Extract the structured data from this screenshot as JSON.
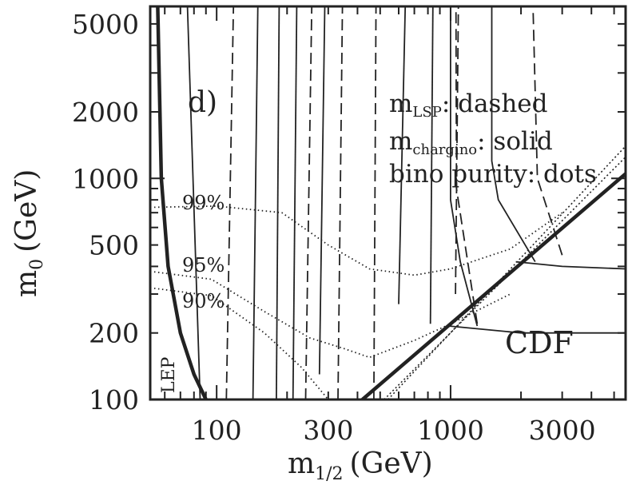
{
  "chart_data": {
    "type": "line",
    "panel_label": "d)",
    "xlabel": "m",
    "xlabel_sub": "1/2",
    "xlabel_unit": "(GeV)",
    "ylabel": "m",
    "ylabel_sub": "0",
    "ylabel_unit": "(GeV)",
    "x_scale": "log",
    "y_scale": "log",
    "xlim": [
      52,
      5600
    ],
    "ylim": [
      100,
      6000
    ],
    "x_ticklabels": [
      {
        "value": 100,
        "label": "100"
      },
      {
        "value": 300,
        "label": "300"
      },
      {
        "value": 1000,
        "label": "1000"
      },
      {
        "value": 3000,
        "label": "3000"
      }
    ],
    "y_ticklabels": [
      {
        "value": 100,
        "label": "100"
      },
      {
        "value": 200,
        "label": "200"
      },
      {
        "value": 500,
        "label": "500"
      },
      {
        "value": 1000,
        "label": "1000"
      },
      {
        "value": 2000,
        "label": "2000"
      },
      {
        "value": 5000,
        "label": "5000"
      }
    ],
    "legend_text": [
      {
        "main": "m",
        "sub": "LSP",
        "rest": ": dashed"
      },
      {
        "main": "m",
        "sub": "chargino",
        "rest": ": solid"
      },
      {
        "main": "",
        "sub": "",
        "rest": "bino purity: dots"
      }
    ],
    "region_labels": {
      "lep": "LEP",
      "cdf": "CDF"
    },
    "purity_labels": [
      "99%",
      "95%",
      "90%"
    ],
    "series": [
      {
        "style": "thick",
        "points": [
          [
            56,
            6000
          ],
          [
            58,
            1000
          ],
          [
            62,
            400
          ],
          [
            70,
            200
          ],
          [
            80,
            130
          ],
          [
            90,
            100
          ]
        ]
      },
      {
        "style": "thick",
        "points": [
          [
            420,
            100
          ],
          [
            5600,
            1050
          ]
        ]
      },
      {
        "style": "dotted",
        "points": [
          [
            520,
            100
          ],
          [
            5600,
            1250
          ]
        ]
      },
      {
        "style": "dotted",
        "points": [
          [
            540,
            100
          ],
          [
            5600,
            1400
          ]
        ]
      },
      {
        "style": "dashed",
        "points": [
          [
            110,
            100
          ],
          [
            118,
            6000
          ]
        ]
      },
      {
        "style": "dashed",
        "points": [
          [
            240,
            100
          ],
          [
            255,
            6000
          ]
        ]
      },
      {
        "style": "dashed",
        "points": [
          [
            330,
            100
          ],
          [
            345,
            6000
          ]
        ]
      },
      {
        "style": "dashed",
        "points": [
          [
            470,
            100
          ],
          [
            480,
            6000
          ]
        ]
      },
      {
        "style": "dashed",
        "points": [
          [
            1050,
            300
          ],
          [
            1080,
            6000
          ]
        ]
      },
      {
        "style": "dashed",
        "points": [
          [
            1300,
            220
          ],
          [
            1060,
            900
          ],
          [
            1055,
            6000
          ]
        ]
      },
      {
        "style": "dashed",
        "points": [
          [
            3000,
            450
          ],
          [
            2350,
            1000
          ],
          [
            2250,
            6000
          ]
        ]
      },
      {
        "style": "solid",
        "points": [
          [
            75,
            6000
          ],
          [
            85,
            100
          ]
        ]
      },
      {
        "style": "solid",
        "points": [
          [
            143,
            100
          ],
          [
            150,
            6000
          ]
        ]
      },
      {
        "style": "solid",
        "points": [
          [
            180,
            100
          ],
          [
            185,
            6000
          ]
        ]
      },
      {
        "style": "solid",
        "points": [
          [
            212,
            100
          ],
          [
            220,
            6000
          ]
        ]
      },
      {
        "style": "solid",
        "points": [
          [
            275,
            130
          ],
          [
            290,
            6000
          ]
        ]
      },
      {
        "style": "solid",
        "points": [
          [
            600,
            270
          ],
          [
            640,
            6000
          ]
        ]
      },
      {
        "style": "solid",
        "points": [
          [
            820,
            220
          ],
          [
            840,
            6000
          ]
        ]
      },
      {
        "style": "solid",
        "points": [
          [
            1300,
            215
          ],
          [
            1100,
            420
          ],
          [
            1000,
            800
          ],
          [
            1000,
            6000
          ]
        ]
      },
      {
        "style": "solid",
        "points": [
          [
            2300,
            420
          ],
          [
            1600,
            800
          ],
          [
            1500,
            1200
          ],
          [
            1500,
            6000
          ]
        ]
      },
      {
        "style": "solid",
        "points": [
          [
            1900,
            420
          ],
          [
            3000,
            400
          ],
          [
            5600,
            390
          ]
        ]
      },
      {
        "style": "solid",
        "points": [
          [
            980,
            215
          ],
          [
            2000,
            200
          ],
          [
            5600,
            200
          ]
        ]
      },
      {
        "style": "dots",
        "label": "99%",
        "points": [
          [
            52,
            740
          ],
          [
            100,
            750
          ],
          [
            190,
            700
          ],
          [
            300,
            500
          ],
          [
            450,
            390
          ],
          [
            700,
            365
          ],
          [
            1000,
            390
          ],
          [
            1800,
            480
          ],
          [
            3000,
            700
          ]
        ]
      },
      {
        "style": "dots",
        "label": "95%",
        "points": [
          [
            52,
            380
          ],
          [
            95,
            350
          ],
          [
            160,
            250
          ],
          [
            250,
            190
          ],
          [
            350,
            170
          ],
          [
            450,
            155
          ],
          [
            700,
            185
          ],
          [
            1000,
            220
          ],
          [
            1800,
            300
          ]
        ]
      },
      {
        "style": "dots",
        "label": "90%",
        "points": [
          [
            52,
            320
          ],
          [
            95,
            295
          ],
          [
            160,
            200
          ],
          [
            230,
            140
          ],
          [
            300,
            100
          ]
        ]
      }
    ]
  }
}
